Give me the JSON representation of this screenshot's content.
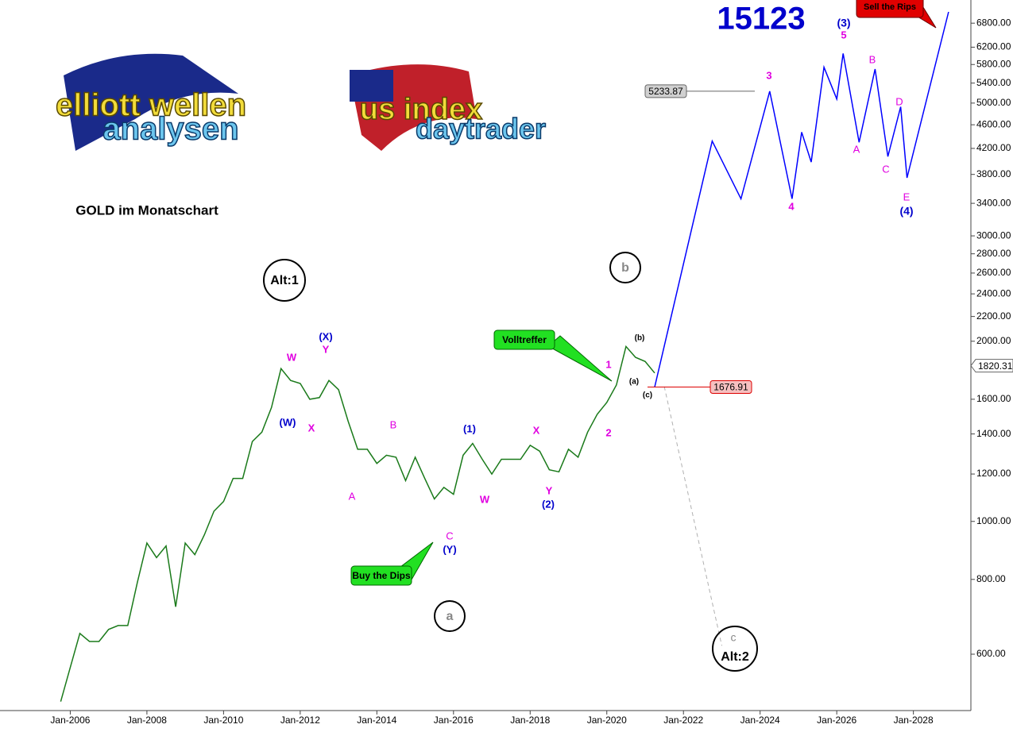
{
  "chart_data": {
    "type": "line",
    "title": "GOLD im Monatschart",
    "log_scale": true,
    "grid": false,
    "xlim": [
      "Mar-2004",
      "Jul-2029"
    ],
    "ylim": [
      483,
      7434
    ],
    "xticks": [
      "Jan-2006",
      "Jan-2008",
      "Jan-2010",
      "Jan-2012",
      "Jan-2014",
      "Jan-2016",
      "Jan-2018",
      "Jan-2020",
      "Jan-2022",
      "Jan-2024",
      "Jan-2026",
      "Jan-2028"
    ],
    "yticks": [
      {
        "value": 600,
        "label": "600.00"
      },
      {
        "value": 800,
        "label": "800.00"
      },
      {
        "value": 1000,
        "label": "1000.00"
      },
      {
        "value": 1200,
        "label": "1200.00"
      },
      {
        "value": 1400,
        "label": "1400.00"
      },
      {
        "value": 1600,
        "label": "1600.00"
      },
      {
        "value": 2000,
        "label": "2000.00"
      },
      {
        "value": 2200,
        "label": "2200.00"
      },
      {
        "value": 2400,
        "label": "2400.00"
      },
      {
        "value": 2600,
        "label": "2600.00"
      },
      {
        "value": 2800,
        "label": "2800.00"
      },
      {
        "value": 3000,
        "label": "3000.00"
      },
      {
        "value": 3400,
        "label": "3400.00"
      },
      {
        "value": 3800,
        "label": "3800.00"
      },
      {
        "value": 4200,
        "label": "4200.00"
      },
      {
        "value": 4600,
        "label": "4600.00"
      },
      {
        "value": 5000,
        "label": "5000.00"
      },
      {
        "value": 5400,
        "label": "5400.00"
      },
      {
        "value": 5800,
        "label": "5800.00"
      },
      {
        "value": 6200,
        "label": "6200.00"
      },
      {
        "value": 6800,
        "label": "6800.00"
      }
    ],
    "series": [
      {
        "color": "#1a7a1a",
        "dash": false,
        "x": [
          "Oct-2005",
          "Jan-2006",
          "Apr-2006",
          "Jul-2006",
          "Oct-2006",
          "Jan-2007",
          "Apr-2007",
          "Jul-2007",
          "Oct-2007",
          "Jan-2008",
          "Apr-2008",
          "Jul-2008",
          "Oct-2008",
          "Jan-2009",
          "Apr-2009",
          "Jul-2009",
          "Oct-2009",
          "Jan-2010",
          "Apr-2010",
          "Jul-2010",
          "Oct-2010",
          "Jan-2011",
          "Apr-2011",
          "Jul-2011",
          "Oct-2011",
          "Jan-2012",
          "Apr-2012",
          "Jul-2012",
          "Oct-2012",
          "Jan-2013",
          "Apr-2013",
          "Jul-2013",
          "Oct-2013",
          "Jan-2014",
          "Apr-2014",
          "Jul-2014",
          "Oct-2014",
          "Jan-2015",
          "Apr-2015",
          "Jul-2015",
          "Oct-2015",
          "Jan-2016",
          "Apr-2016",
          "Jul-2016",
          "Oct-2016",
          "Jan-2017",
          "Apr-2017",
          "Jul-2017",
          "Oct-2017",
          "Jan-2018",
          "Apr-2018",
          "Jul-2018",
          "Oct-2018",
          "Jan-2019",
          "Apr-2019",
          "Jul-2019",
          "Oct-2019",
          "Jan-2020",
          "Apr-2020",
          "Jul-2020",
          "Oct-2020",
          "Jan-2021",
          "Apr-2021"
        ],
        "values": [
          500,
          570,
          650,
          630,
          630,
          660,
          670,
          670,
          790,
          920,
          870,
          910,
          720,
          920,
          880,
          950,
          1040,
          1080,
          1180,
          1180,
          1360,
          1410,
          1550,
          1800,
          1720,
          1700,
          1600,
          1610,
          1720,
          1660,
          1470,
          1320,
          1320,
          1250,
          1290,
          1280,
          1170,
          1280,
          1180,
          1090,
          1140,
          1110,
          1290,
          1350,
          1270,
          1200,
          1270,
          1270,
          1270,
          1340,
          1310,
          1220,
          1210,
          1320,
          1280,
          1410,
          1510,
          1580,
          1690,
          1960,
          1880,
          1850,
          1770
        ]
      },
      {
        "color": "#0000ff",
        "dash": false,
        "x": [
          "Apr-2021",
          "Oct-2022",
          "Jul-2023",
          "Apr-2024",
          "Nov-2024",
          "Feb-2025",
          "May-2025",
          "Sep-2025",
          "Jan-2026",
          "Mar-2026",
          "Aug-2026",
          "Jan-2027",
          "May-2027",
          "Sep-2027",
          "Nov-2027",
          "Dec-2028"
        ],
        "values": [
          1676.91,
          4320,
          3460,
          5233.87,
          3460,
          4470,
          3985,
          5740,
          5080,
          6050,
          4300,
          5700,
          4070,
          4930,
          3750,
          7100
        ]
      },
      {
        "color": "#b0b0b0",
        "dash": true,
        "x": [
          "Jul-2021",
          "Jan-2023"
        ],
        "values": [
          1680,
          620
        ]
      }
    ],
    "price_labels": [
      5233.87,
      1676.91
    ],
    "last_price": 1820.31,
    "logos": [
      "elliott wellen",
      "analysen",
      "us index",
      "daytrader"
    ],
    "annotations": [
      "15123",
      "Alt:1",
      "a",
      "b",
      "c",
      "Alt:2",
      "Volltreffer",
      "Buy the Dips",
      "Sell the Rips",
      "(3)",
      "5",
      "3",
      "4",
      "(4)",
      "E",
      "A",
      "B",
      "C",
      "D",
      "(X)",
      "Y",
      "W",
      "(W)",
      "X",
      "A",
      "B",
      "(1)",
      "X",
      "W",
      "Y",
      "(2)",
      "C",
      "(Y)",
      "1",
      "2",
      "(a)",
      "(b)",
      "(c)"
    ]
  }
}
